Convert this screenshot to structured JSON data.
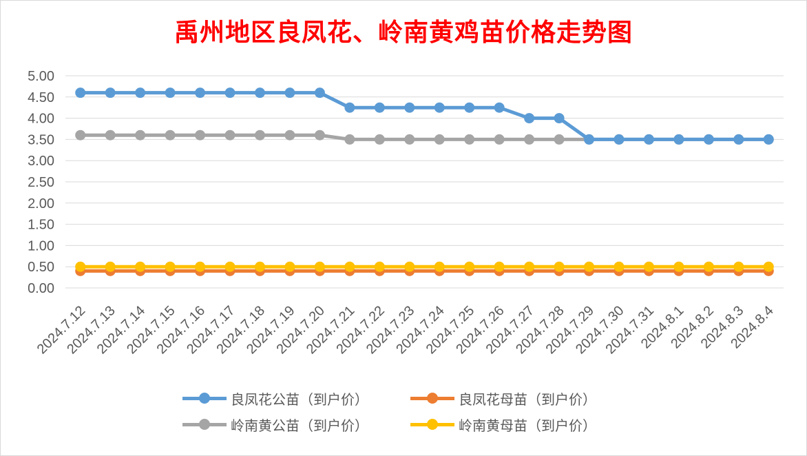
{
  "chart_data": {
    "type": "line",
    "title": "禹州地区良凤花、岭南黄鸡苗价格走势图",
    "categories": [
      "2024.7.12",
      "2024.7.13",
      "2024.7.14",
      "2024.7.15",
      "2024.7.16",
      "2024.7.17",
      "2024.7.18",
      "2024.7.19",
      "2024.7.20",
      "2024.7.21",
      "2024.7.22",
      "2024.7.23",
      "2024.7.24",
      "2024.7.25",
      "2024.7.26",
      "2024.7.27",
      "2024.7.28",
      "2024.7.29",
      "2024.7.30",
      "2024.7.31",
      "2024.8.1",
      "2024.8.2",
      "2024.8.3",
      "2024.8.4"
    ],
    "ylim": [
      0,
      5
    ],
    "yticks": [
      "0.00",
      "0.50",
      "1.00",
      "1.50",
      "2.00",
      "2.50",
      "3.00",
      "3.50",
      "4.00",
      "4.50",
      "5.00"
    ],
    "grid": true,
    "legend_position": "bottom",
    "series": [
      {
        "name": "良凤花公苗（到户价）",
        "color": "#5b9bd5",
        "values": [
          4.6,
          4.6,
          4.6,
          4.6,
          4.6,
          4.6,
          4.6,
          4.6,
          4.6,
          4.25,
          4.25,
          4.25,
          4.25,
          4.25,
          4.25,
          4.0,
          4.0,
          3.5,
          3.5,
          3.5,
          3.5,
          3.5,
          3.5,
          3.5
        ]
      },
      {
        "name": "良凤花母苗（到户价）",
        "color": "#ed7d31",
        "values": [
          0.4,
          0.4,
          0.4,
          0.4,
          0.4,
          0.4,
          0.4,
          0.4,
          0.4,
          0.4,
          0.4,
          0.4,
          0.4,
          0.4,
          0.4,
          0.4,
          0.4,
          0.4,
          0.4,
          0.4,
          0.4,
          0.4,
          0.4,
          0.4
        ]
      },
      {
        "name": "岭南黄公苗（到户价）",
        "color": "#a5a5a5",
        "values": [
          3.6,
          3.6,
          3.6,
          3.6,
          3.6,
          3.6,
          3.6,
          3.6,
          3.6,
          3.5,
          3.5,
          3.5,
          3.5,
          3.5,
          3.5,
          3.5,
          3.5,
          3.5,
          3.5,
          3.5,
          3.5,
          3.5,
          3.5,
          3.5
        ]
      },
      {
        "name": "岭南黄母苗（到户价）",
        "color": "#ffc000",
        "values": [
          0.5,
          0.5,
          0.5,
          0.5,
          0.5,
          0.5,
          0.5,
          0.5,
          0.5,
          0.5,
          0.5,
          0.5,
          0.5,
          0.5,
          0.5,
          0.5,
          0.5,
          0.5,
          0.5,
          0.5,
          0.5,
          0.5,
          0.5,
          0.5
        ]
      }
    ]
  }
}
